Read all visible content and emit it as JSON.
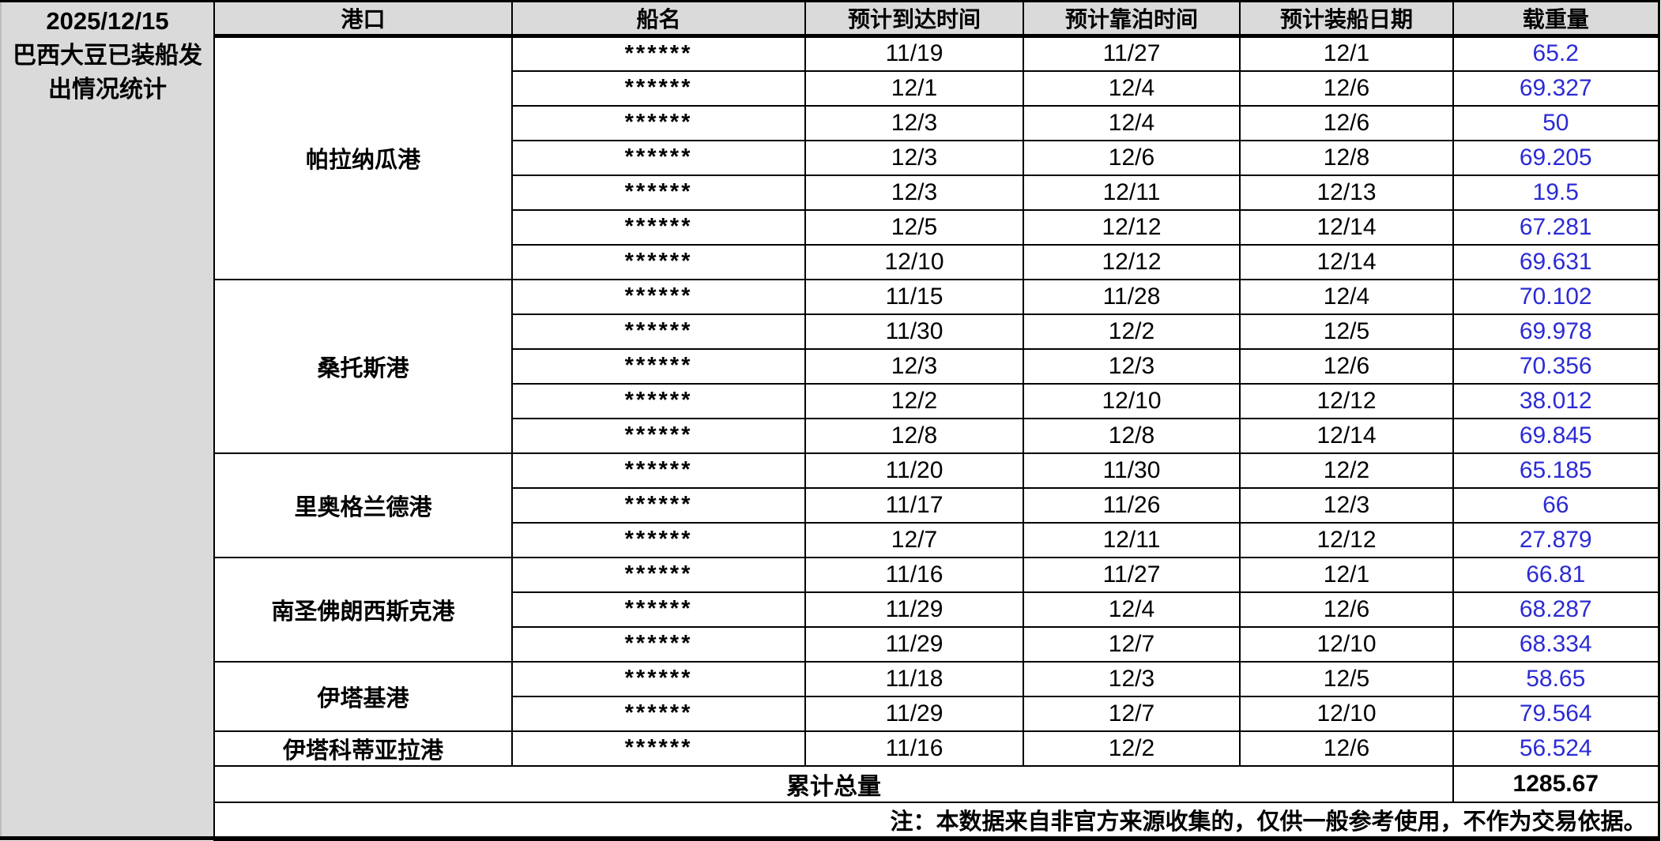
{
  "report": {
    "date": "2025/12/15",
    "title": "巴西大豆已装船发出情况统计"
  },
  "columns": {
    "port": "港口",
    "ship": "船名",
    "eta": "预计到达时间",
    "berth": "预计靠泊时间",
    "loading": "预计装船日期",
    "dwt": "载重量"
  },
  "groups": [
    {
      "port": "帕拉纳瓜港",
      "rows": [
        {
          "ship": "******",
          "eta": "11/19",
          "berth": "11/27",
          "loading": "12/1",
          "dwt": "65.2"
        },
        {
          "ship": "******",
          "eta": "12/1",
          "berth": "12/4",
          "loading": "12/6",
          "dwt": "69.327"
        },
        {
          "ship": "******",
          "eta": "12/3",
          "berth": "12/4",
          "loading": "12/6",
          "dwt": "50"
        },
        {
          "ship": "******",
          "eta": "12/3",
          "berth": "12/6",
          "loading": "12/8",
          "dwt": "69.205"
        },
        {
          "ship": "******",
          "eta": "12/3",
          "berth": "12/11",
          "loading": "12/13",
          "dwt": "19.5"
        },
        {
          "ship": "******",
          "eta": "12/5",
          "berth": "12/12",
          "loading": "12/14",
          "dwt": "67.281"
        },
        {
          "ship": "******",
          "eta": "12/10",
          "berth": "12/12",
          "loading": "12/14",
          "dwt": "69.631"
        }
      ]
    },
    {
      "port": "桑托斯港",
      "rows": [
        {
          "ship": "******",
          "eta": "11/15",
          "berth": "11/28",
          "loading": "12/4",
          "dwt": "70.102"
        },
        {
          "ship": "******",
          "eta": "11/30",
          "berth": "12/2",
          "loading": "12/5",
          "dwt": "69.978"
        },
        {
          "ship": "******",
          "eta": "12/3",
          "berth": "12/3",
          "loading": "12/6",
          "dwt": "70.356"
        },
        {
          "ship": "******",
          "eta": "12/2",
          "berth": "12/10",
          "loading": "12/12",
          "dwt": "38.012"
        },
        {
          "ship": "******",
          "eta": "12/8",
          "berth": "12/8",
          "loading": "12/14",
          "dwt": "69.845"
        }
      ]
    },
    {
      "port": "里奥格兰德港",
      "rows": [
        {
          "ship": "******",
          "eta": "11/20",
          "berth": "11/30",
          "loading": "12/2",
          "dwt": "65.185"
        },
        {
          "ship": "******",
          "eta": "11/17",
          "berth": "11/26",
          "loading": "12/3",
          "dwt": "66"
        },
        {
          "ship": "******",
          "eta": "12/7",
          "berth": "12/11",
          "loading": "12/12",
          "dwt": "27.879"
        }
      ]
    },
    {
      "port": "南圣佛朗西斯克港",
      "rows": [
        {
          "ship": "******",
          "eta": "11/16",
          "berth": "11/27",
          "loading": "12/1",
          "dwt": "66.81"
        },
        {
          "ship": "******",
          "eta": "11/29",
          "berth": "12/4",
          "loading": "12/6",
          "dwt": "68.287"
        },
        {
          "ship": "******",
          "eta": "11/29",
          "berth": "12/7",
          "loading": "12/10",
          "dwt": "68.334"
        }
      ]
    },
    {
      "port": "伊塔基港",
      "rows": [
        {
          "ship": "******",
          "eta": "11/18",
          "berth": "12/3",
          "loading": "12/5",
          "dwt": "58.65"
        },
        {
          "ship": "******",
          "eta": "11/29",
          "berth": "12/7",
          "loading": "12/10",
          "dwt": "79.564"
        }
      ]
    },
    {
      "port": "伊塔科蒂亚拉港",
      "rows": [
        {
          "ship": "******",
          "eta": "11/16",
          "berth": "12/2",
          "loading": "12/6",
          "dwt": "56.524"
        }
      ]
    }
  ],
  "summary": {
    "total_label": "累计总量",
    "total_value": "1285.67"
  },
  "note": "注：本数据来自非官方来源收集的，仅供一般参考使用，不作为交易依据。",
  "colors": {
    "weight_blue": "#2B2BD5",
    "header_bg": "#DADADA",
    "border_black": "#000000"
  }
}
